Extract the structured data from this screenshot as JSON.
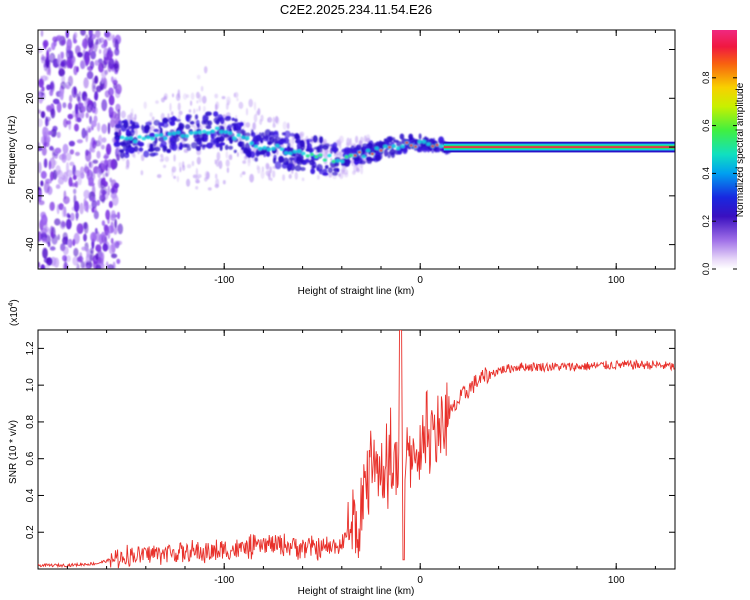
{
  "title": "C2E2.2025.234.11.54.E26",
  "chart_data": [
    {
      "type": "heatmap",
      "name": "spectrogram",
      "xlabel": "Height of straight line (km)",
      "ylabel": "Frequency (Hz)",
      "xlim": [
        -195,
        130
      ],
      "ylim": [
        -50,
        48
      ],
      "xticks": [
        -100,
        0,
        100
      ],
      "xtick_labels": [
        "-100",
        "0",
        "100"
      ],
      "yticks": [
        -40,
        -20,
        0,
        20,
        40
      ],
      "ytick_labels": [
        "-40",
        "-20",
        "0",
        "20",
        "40"
      ],
      "colorbar": {
        "label": "Normalized spectral amplitude",
        "range": [
          0,
          1
        ],
        "ticks": [
          0,
          0.2,
          0.4,
          0.6,
          0.8
        ],
        "tick_labels": [
          "0.0",
          "0.2",
          "0.4",
          "0.6",
          "0.8"
        ]
      },
      "ridge": {
        "x": [
          -155,
          -145,
          -135,
          -125,
          -115,
          -108,
          -100,
          -90,
          -80,
          -70,
          -60,
          -50,
          -42,
          -35,
          -25,
          -15,
          -8,
          0,
          8,
          15,
          130
        ],
        "y": [
          4,
          3,
          4,
          5,
          6,
          7,
          6,
          3,
          0,
          -1,
          -3,
          -4,
          -5,
          -4,
          -2,
          0,
          1,
          1,
          1,
          0,
          0
        ]
      }
    },
    {
      "type": "line",
      "name": "snr",
      "xlabel": "Height of straight line (km)",
      "ylabel": "SNR (10 * v/v)",
      "scale_label": "(x10",
      "scale_exponent": "4",
      "scale_close": ")",
      "xlim": [
        -195,
        130
      ],
      "ylim": [
        0,
        1.3
      ],
      "xticks": [
        -100,
        0,
        100
      ],
      "xtick_labels": [
        "-100",
        "0",
        "100"
      ],
      "yticks": [
        0.2,
        0.4,
        0.6,
        0.8,
        1.0,
        1.2
      ],
      "ytick_labels": [
        "0.2",
        "0.4",
        "0.6",
        "0.8",
        "1.0",
        "1.2"
      ],
      "color": "#e8302a",
      "series": [
        {
          "name": "SNR",
          "x": [
            -195,
            -180,
            -165,
            -158,
            -150,
            -140,
            -130,
            -120,
            -110,
            -100,
            -90,
            -80,
            -70,
            -60,
            -50,
            -40,
            -32,
            -28,
            -25,
            -20,
            -15,
            -12,
            -10,
            -8,
            -5,
            0,
            5,
            10,
            15,
            20,
            25,
            30,
            40,
            50,
            60,
            80,
            100,
            120,
            130
          ],
          "y": [
            0.02,
            0.02,
            0.03,
            0.05,
            0.07,
            0.08,
            0.09,
            0.09,
            0.09,
            0.1,
            0.11,
            0.13,
            0.13,
            0.12,
            0.11,
            0.13,
            0.28,
            0.45,
            0.55,
            0.52,
            0.6,
            0.55,
            0.45,
            0.52,
            0.62,
            0.64,
            0.7,
            0.76,
            0.84,
            0.92,
            0.98,
            1.03,
            1.08,
            1.1,
            1.1,
            1.1,
            1.11,
            1.11,
            1.1
          ]
        }
      ]
    }
  ]
}
